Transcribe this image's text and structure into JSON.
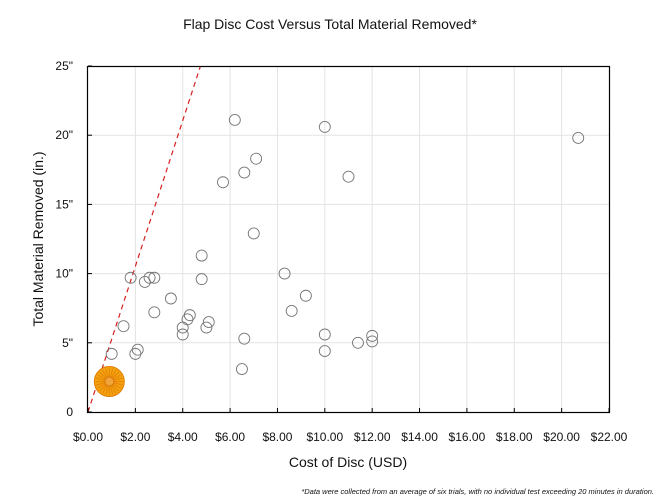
{
  "chart_data": {
    "type": "scatter",
    "title": "Flap Disc Cost Versus Total Material Removed*",
    "xlabel": "Cost of Disc (USD)",
    "ylabel": "Total Material Removed (in.)",
    "xlim": [
      0,
      22
    ],
    "ylim": [
      0,
      25
    ],
    "x_ticks": [
      0,
      2,
      4,
      6,
      8,
      10,
      12,
      14,
      16,
      18,
      20,
      22
    ],
    "x_tick_labels": [
      "$0.00",
      "$2.00",
      "$4.00",
      "$6.00",
      "$8.00",
      "$10.00",
      "$12.00",
      "$14.00",
      "$16.00",
      "$18.00",
      "$20.00",
      "$22.00"
    ],
    "y_ticks": [
      0,
      5,
      10,
      15,
      20,
      25
    ],
    "y_tick_labels": [
      "0",
      "5\"",
      "10\"",
      "15\"",
      "20\"",
      "25\""
    ],
    "grid": true,
    "footnote": "*Data were collected from an average of six trials, with no individual test exceeding 20 minutes in duration.",
    "series": [
      {
        "points": [
          [
            1.0,
            4.2
          ],
          [
            1.5,
            6.2
          ],
          [
            1.8,
            9.7
          ],
          [
            2.0,
            4.2
          ],
          [
            2.1,
            4.5
          ],
          [
            2.4,
            9.4
          ],
          [
            2.6,
            9.7
          ],
          [
            2.8,
            9.7
          ],
          [
            2.8,
            7.2
          ],
          [
            3.5,
            8.2
          ],
          [
            4.0,
            6.1
          ],
          [
            4.0,
            5.6
          ],
          [
            4.2,
            6.7
          ],
          [
            4.3,
            7.0
          ],
          [
            4.8,
            11.3
          ],
          [
            4.8,
            9.6
          ],
          [
            5.0,
            6.1
          ],
          [
            5.1,
            6.5
          ],
          [
            5.7,
            16.6
          ],
          [
            6.2,
            21.1
          ],
          [
            6.5,
            3.1
          ],
          [
            6.6,
            5.3
          ],
          [
            6.6,
            17.3
          ],
          [
            7.0,
            12.9
          ],
          [
            7.1,
            18.3
          ],
          [
            8.3,
            10.0
          ],
          [
            8.6,
            7.3
          ],
          [
            9.2,
            8.4
          ],
          [
            10.0,
            20.6
          ],
          [
            10.0,
            5.6
          ],
          [
            10.0,
            4.4
          ],
          [
            11.0,
            17.0
          ],
          [
            11.4,
            5.0
          ],
          [
            12.0,
            5.5
          ],
          [
            12.0,
            5.1
          ],
          [
            20.7,
            19.8
          ]
        ],
        "color": "#777777"
      },
      {
        "points": [
          [
            0.9,
            2.2
          ]
        ],
        "color": "#f5a20f"
      }
    ],
    "trendline": {
      "x": [
        0.0,
        4.75
      ],
      "y": [
        0.0,
        25.0
      ],
      "color": "#d62020",
      "style": "dashed"
    }
  }
}
